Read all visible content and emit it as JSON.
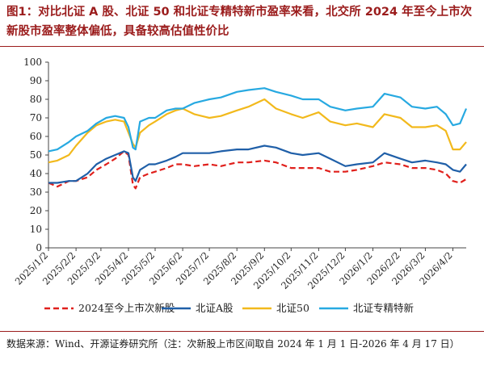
{
  "figure": {
    "title": "图1：对比北证 A 股、北证 50 和北证专精特新市盈率来看，北交所 2024 年至今上市次新股市盈率整体偏低，具备较高估值性价比",
    "source_note": "数据来源：Wind、开源证券研究所（注：次新股上市区间取自 2024 年 1 月 1 日-2026 年 4 月 17 日）",
    "accent_color": "#9b1c1c"
  },
  "chart_data": {
    "type": "line",
    "title": "",
    "xlabel": "",
    "ylabel": "",
    "ylim": [
      0,
      100
    ],
    "y_ticks": [
      0,
      10,
      20,
      30,
      40,
      50,
      60,
      70,
      80,
      90,
      100
    ],
    "x_ticks": [
      "2025/1/2",
      "2025/2/2",
      "2025/3/2",
      "2025/4/2",
      "2025/5/2",
      "2025/6/2",
      "2025/7/2",
      "2025/8/2",
      "2025/9/2",
      "2025/10/2",
      "2025/11/2",
      "2025/12/2",
      "2026/1/2",
      "2026/2/2",
      "2026/3/2",
      "2026/4/2"
    ],
    "x_range": [
      "2025/1/2",
      "2026/4/17"
    ],
    "grid": false,
    "legend_position": "bottom",
    "series": [
      {
        "name": "2024至今上市次新股",
        "color": "#e0201c",
        "dash": "dashed",
        "points": [
          [
            "2025/1/2",
            35
          ],
          [
            "2025/1/12",
            33
          ],
          [
            "2025/1/25",
            36
          ],
          [
            "2025/2/2",
            36
          ],
          [
            "2025/2/15",
            38
          ],
          [
            "2025/2/25",
            42
          ],
          [
            "2025/3/8",
            45
          ],
          [
            "2025/3/18",
            48
          ],
          [
            "2025/3/28",
            52
          ],
          [
            "2025/4/2",
            50
          ],
          [
            "2025/4/7",
            34
          ],
          [
            "2025/4/10",
            32
          ],
          [
            "2025/4/15",
            38
          ],
          [
            "2025/4/25",
            40
          ],
          [
            "2025/5/2",
            41
          ],
          [
            "2025/5/15",
            43
          ],
          [
            "2025/5/25",
            45
          ],
          [
            "2025/6/2",
            45
          ],
          [
            "2025/6/15",
            44
          ],
          [
            "2025/7/2",
            45
          ],
          [
            "2025/7/15",
            44
          ],
          [
            "2025/8/2",
            46
          ],
          [
            "2025/8/15",
            46
          ],
          [
            "2025/9/2",
            47
          ],
          [
            "2025/9/15",
            46
          ],
          [
            "2025/10/2",
            43
          ],
          [
            "2025/10/15",
            43
          ],
          [
            "2025/11/2",
            43
          ],
          [
            "2025/11/15",
            41
          ],
          [
            "2025/12/2",
            41
          ],
          [
            "2025/12/15",
            42
          ],
          [
            "2026/1/2",
            44
          ],
          [
            "2026/1/15",
            46
          ],
          [
            "2026/2/2",
            45
          ],
          [
            "2026/2/15",
            43
          ],
          [
            "2026/3/2",
            43
          ],
          [
            "2026/3/15",
            42
          ],
          [
            "2026/3/25",
            40
          ],
          [
            "2026/4/2",
            36
          ],
          [
            "2026/4/10",
            35
          ],
          [
            "2026/4/17",
            37
          ]
        ]
      },
      {
        "name": "北证A股",
        "color": "#1f5fa8",
        "dash": "solid",
        "points": [
          [
            "2025/1/2",
            35
          ],
          [
            "2025/1/12",
            35
          ],
          [
            "2025/1/25",
            36
          ],
          [
            "2025/2/2",
            36
          ],
          [
            "2025/2/15",
            40
          ],
          [
            "2025/2/25",
            45
          ],
          [
            "2025/3/8",
            48
          ],
          [
            "2025/3/18",
            50
          ],
          [
            "2025/3/28",
            52
          ],
          [
            "2025/4/2",
            51
          ],
          [
            "2025/4/7",
            38
          ],
          [
            "2025/4/10",
            36
          ],
          [
            "2025/4/15",
            42
          ],
          [
            "2025/4/25",
            45
          ],
          [
            "2025/5/2",
            45
          ],
          [
            "2025/5/15",
            47
          ],
          [
            "2025/5/25",
            49
          ],
          [
            "2025/6/2",
            51
          ],
          [
            "2025/6/15",
            51
          ],
          [
            "2025/7/2",
            51
          ],
          [
            "2025/7/15",
            52
          ],
          [
            "2025/8/2",
            53
          ],
          [
            "2025/8/15",
            53
          ],
          [
            "2025/9/2",
            55
          ],
          [
            "2025/9/15",
            54
          ],
          [
            "2025/10/2",
            51
          ],
          [
            "2025/10/15",
            50
          ],
          [
            "2025/11/2",
            51
          ],
          [
            "2025/11/15",
            48
          ],
          [
            "2025/12/2",
            44
          ],
          [
            "2025/12/15",
            45
          ],
          [
            "2026/1/2",
            46
          ],
          [
            "2026/1/15",
            51
          ],
          [
            "2026/2/2",
            48
          ],
          [
            "2026/2/15",
            46
          ],
          [
            "2026/3/2",
            47
          ],
          [
            "2026/3/15",
            46
          ],
          [
            "2026/3/25",
            45
          ],
          [
            "2026/4/2",
            42
          ],
          [
            "2026/4/10",
            41
          ],
          [
            "2026/4/17",
            45
          ]
        ]
      },
      {
        "name": "北证50",
        "color": "#f2b91c",
        "dash": "solid",
        "points": [
          [
            "2025/1/2",
            46
          ],
          [
            "2025/1/12",
            47
          ],
          [
            "2025/1/25",
            50
          ],
          [
            "2025/2/2",
            55
          ],
          [
            "2025/2/15",
            62
          ],
          [
            "2025/2/25",
            66
          ],
          [
            "2025/3/8",
            68
          ],
          [
            "2025/3/18",
            69
          ],
          [
            "2025/3/28",
            68
          ],
          [
            "2025/4/2",
            62
          ],
          [
            "2025/4/7",
            56
          ],
          [
            "2025/4/10",
            54
          ],
          [
            "2025/4/15",
            62
          ],
          [
            "2025/4/25",
            66
          ],
          [
            "2025/5/2",
            68
          ],
          [
            "2025/5/15",
            72
          ],
          [
            "2025/5/25",
            74
          ],
          [
            "2025/6/2",
            75
          ],
          [
            "2025/6/15",
            72
          ],
          [
            "2025/7/2",
            70
          ],
          [
            "2025/7/15",
            71
          ],
          [
            "2025/8/2",
            74
          ],
          [
            "2025/8/15",
            76
          ],
          [
            "2025/9/2",
            80
          ],
          [
            "2025/9/15",
            75
          ],
          [
            "2025/10/2",
            72
          ],
          [
            "2025/10/15",
            70
          ],
          [
            "2025/11/2",
            73
          ],
          [
            "2025/11/15",
            68
          ],
          [
            "2025/12/2",
            66
          ],
          [
            "2025/12/15",
            67
          ],
          [
            "2026/1/2",
            65
          ],
          [
            "2026/1/15",
            72
          ],
          [
            "2026/2/2",
            70
          ],
          [
            "2026/2/15",
            65
          ],
          [
            "2026/3/2",
            65
          ],
          [
            "2026/3/15",
            66
          ],
          [
            "2026/3/25",
            63
          ],
          [
            "2026/4/2",
            53
          ],
          [
            "2026/4/10",
            53
          ],
          [
            "2026/4/17",
            57
          ]
        ]
      },
      {
        "name": "北证专精特新",
        "color": "#27a9e1",
        "dash": "solid",
        "points": [
          [
            "2025/1/2",
            52
          ],
          [
            "2025/1/12",
            53
          ],
          [
            "2025/1/25",
            57
          ],
          [
            "2025/2/2",
            60
          ],
          [
            "2025/2/15",
            63
          ],
          [
            "2025/2/25",
            67
          ],
          [
            "2025/3/8",
            70
          ],
          [
            "2025/3/18",
            71
          ],
          [
            "2025/3/28",
            70
          ],
          [
            "2025/4/2",
            65
          ],
          [
            "2025/4/7",
            54
          ],
          [
            "2025/4/10",
            53
          ],
          [
            "2025/4/15",
            68
          ],
          [
            "2025/4/25",
            70
          ],
          [
            "2025/5/2",
            70
          ],
          [
            "2025/5/15",
            74
          ],
          [
            "2025/5/25",
            75
          ],
          [
            "2025/6/2",
            75
          ],
          [
            "2025/6/15",
            78
          ],
          [
            "2025/7/2",
            80
          ],
          [
            "2025/7/15",
            81
          ],
          [
            "2025/8/2",
            84
          ],
          [
            "2025/8/15",
            85
          ],
          [
            "2025/9/2",
            86
          ],
          [
            "2025/9/15",
            84
          ],
          [
            "2025/10/2",
            82
          ],
          [
            "2025/10/15",
            80
          ],
          [
            "2025/11/2",
            80
          ],
          [
            "2025/11/15",
            76
          ],
          [
            "2025/12/2",
            74
          ],
          [
            "2025/12/15",
            75
          ],
          [
            "2026/1/2",
            76
          ],
          [
            "2026/1/15",
            83
          ],
          [
            "2026/2/2",
            81
          ],
          [
            "2026/2/15",
            76
          ],
          [
            "2026/3/2",
            75
          ],
          [
            "2026/3/15",
            76
          ],
          [
            "2026/3/25",
            72
          ],
          [
            "2026/4/2",
            66
          ],
          [
            "2026/4/10",
            67
          ],
          [
            "2026/4/17",
            75
          ]
        ]
      }
    ]
  }
}
